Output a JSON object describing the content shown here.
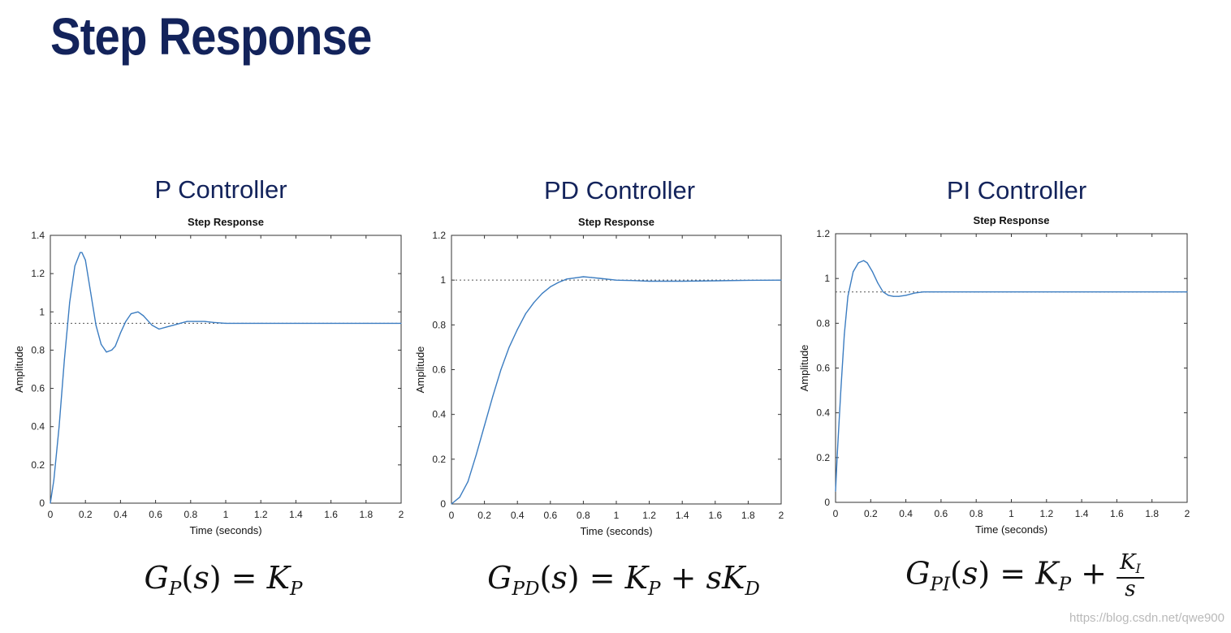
{
  "title": "Step Response",
  "watermark": "https://blog.csdn.net/qwe900",
  "colors": {
    "title": "#13235b",
    "line": "#3c7dc1",
    "axis": "#333333"
  },
  "panels": [
    {
      "heading": "P Controller",
      "equation": {
        "lhs_sub": "P",
        "rhs_K_sub": "P"
      }
    },
    {
      "heading": "PD Controller",
      "equation": {
        "lhs_sub": "PD",
        "rhs_K_sub": "P",
        "extra_sub": "D"
      }
    },
    {
      "heading": "PI Controller",
      "equation": {
        "lhs_sub": "PI",
        "rhs_K_sub": "P",
        "frac_num_sub": "I",
        "frac_den": "s"
      }
    }
  ],
  "chart_data": [
    {
      "type": "line",
      "title": "Step Response",
      "xlabel": "Time (seconds)",
      "ylabel": "Amplitude",
      "xlim": [
        0,
        2
      ],
      "ylim": [
        0,
        1.4
      ],
      "xticks": [
        0,
        0.2,
        0.4,
        0.6,
        0.8,
        1,
        1.2,
        1.4,
        1.6,
        1.8,
        2
      ],
      "xtick_labels": [
        "0",
        "0.2",
        "0.4",
        "0.6",
        "0.8",
        "1",
        "1.2",
        "1.4",
        "1.6",
        "1.8",
        "2"
      ],
      "yticks": [
        0,
        0.2,
        0.4,
        0.6,
        0.8,
        1,
        1.2,
        1.4
      ],
      "ytick_labels": [
        "0",
        "0.2",
        "0.4",
        "0.6",
        "0.8",
        "1",
        "1.2",
        "1.4"
      ],
      "grid": false,
      "steady_state": 0.94,
      "series": [
        {
          "x": [
            0,
            0.02,
            0.05,
            0.08,
            0.11,
            0.14,
            0.17,
            0.18,
            0.2,
            0.23,
            0.26,
            0.29,
            0.32,
            0.35,
            0.37,
            0.4,
            0.43,
            0.46,
            0.5,
            0.53,
            0.55,
            0.58,
            0.62,
            0.66,
            0.7,
            0.74,
            0.78,
            0.83,
            0.88,
            0.93,
            1.0,
            1.1,
            1.2,
            1.4,
            1.6,
            1.8,
            2.0
          ],
          "y": [
            0,
            0.12,
            0.4,
            0.75,
            1.05,
            1.24,
            1.31,
            1.31,
            1.27,
            1.1,
            0.93,
            0.83,
            0.79,
            0.8,
            0.82,
            0.89,
            0.95,
            0.99,
            1.0,
            0.98,
            0.96,
            0.93,
            0.91,
            0.92,
            0.93,
            0.94,
            0.95,
            0.95,
            0.95,
            0.945,
            0.94,
            0.94,
            0.94,
            0.94,
            0.94,
            0.94,
            0.94
          ]
        }
      ]
    },
    {
      "type": "line",
      "title": "Step Response",
      "xlabel": "Time (seconds)",
      "ylabel": "Amplitude",
      "xlim": [
        0,
        2
      ],
      "ylim": [
        0,
        1.2
      ],
      "xticks": [
        0,
        0.2,
        0.4,
        0.6,
        0.8,
        1,
        1.2,
        1.4,
        1.6,
        1.8,
        2
      ],
      "xtick_labels": [
        "0",
        "0.2",
        "0.4",
        "0.6",
        "0.8",
        "1",
        "1.2",
        "1.4",
        "1.6",
        "1.8",
        "2"
      ],
      "yticks": [
        0,
        0.2,
        0.4,
        0.6,
        0.8,
        1,
        1.2
      ],
      "ytick_labels": [
        "0",
        "0.2",
        "0.4",
        "0.6",
        "0.8",
        "1",
        "1.2"
      ],
      "grid": false,
      "steady_state": 1.0,
      "series": [
        {
          "x": [
            0,
            0.05,
            0.1,
            0.15,
            0.2,
            0.25,
            0.3,
            0.35,
            0.4,
            0.45,
            0.5,
            0.55,
            0.6,
            0.65,
            0.7,
            0.75,
            0.8,
            0.85,
            0.9,
            1.0,
            1.1,
            1.2,
            1.4,
            1.6,
            1.8,
            2.0
          ],
          "y": [
            0,
            0.03,
            0.1,
            0.22,
            0.35,
            0.48,
            0.6,
            0.7,
            0.78,
            0.85,
            0.9,
            0.94,
            0.97,
            0.99,
            1.005,
            1.01,
            1.015,
            1.012,
            1.008,
            1.0,
            0.998,
            0.995,
            0.995,
            0.997,
            0.999,
            1.0
          ]
        }
      ]
    },
    {
      "type": "line",
      "title": "Step Response",
      "xlabel": "Time (seconds)",
      "ylabel": "Amplitude",
      "xlim": [
        0,
        2
      ],
      "ylim": [
        0,
        1.2
      ],
      "xticks": [
        0,
        0.2,
        0.4,
        0.6,
        0.8,
        1,
        1.2,
        1.4,
        1.6,
        1.8,
        2
      ],
      "xtick_labels": [
        "0",
        "0.2",
        "0.4",
        "0.6",
        "0.8",
        "1",
        "1.2",
        "1.4",
        "1.6",
        "1.8",
        "2"
      ],
      "yticks": [
        0,
        0.2,
        0.4,
        0.6,
        0.8,
        1,
        1.2
      ],
      "ytick_labels": [
        "0",
        "0.2",
        "0.4",
        "0.6",
        "0.8",
        "1",
        "1.2"
      ],
      "grid": false,
      "steady_state": 0.94,
      "series": [
        {
          "x": [
            0,
            0.01,
            0.03,
            0.05,
            0.07,
            0.1,
            0.13,
            0.16,
            0.18,
            0.21,
            0.24,
            0.27,
            0.3,
            0.33,
            0.36,
            0.4,
            0.45,
            0.5,
            0.55,
            0.6,
            0.8,
            1.0,
            1.5,
            2.0
          ],
          "y": [
            0.05,
            0.22,
            0.5,
            0.75,
            0.92,
            1.03,
            1.07,
            1.08,
            1.07,
            1.03,
            0.98,
            0.94,
            0.925,
            0.92,
            0.92,
            0.925,
            0.935,
            0.94,
            0.94,
            0.94,
            0.94,
            0.94,
            0.94,
            0.94
          ]
        }
      ]
    }
  ]
}
